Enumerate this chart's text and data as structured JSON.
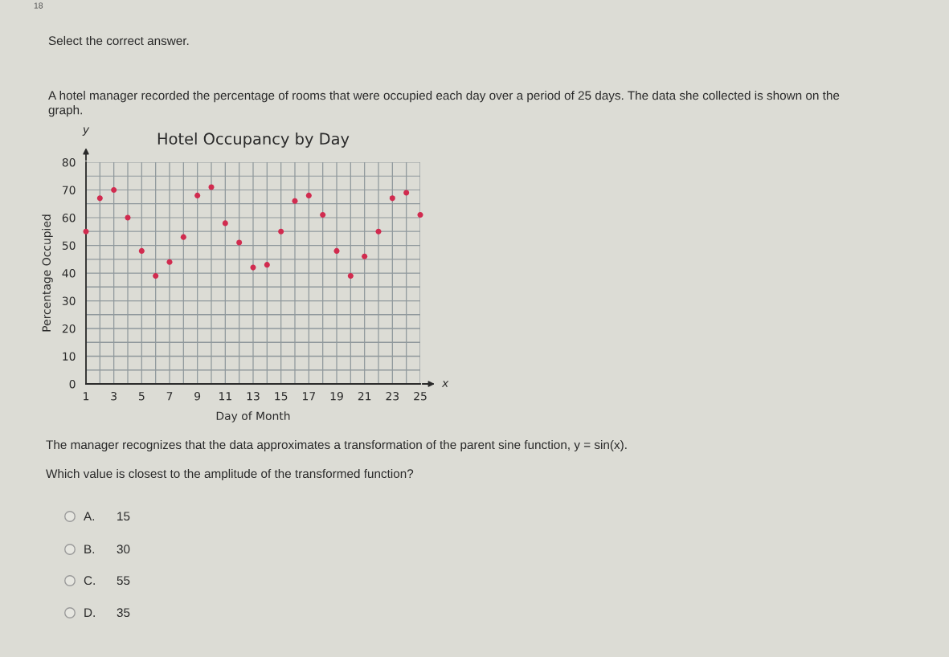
{
  "chart_data": {
    "type": "scatter",
    "title": "Hotel Occupancy by Day",
    "xlabel": "Day of Month",
    "ylabel": "Percentage Occupied",
    "x": [
      1,
      2,
      3,
      4,
      5,
      6,
      7,
      8,
      9,
      10,
      11,
      12,
      13,
      14,
      15,
      16,
      17,
      18,
      19,
      20,
      21,
      22,
      23,
      24,
      25
    ],
    "series": [
      {
        "color": "#d12b4f",
        "values": [
          55,
          67,
          70,
          60,
          48,
          39,
          44,
          53,
          68,
          71,
          58,
          51,
          42,
          43,
          55,
          66,
          68,
          61,
          48,
          39,
          46,
          55,
          67,
          69,
          61
        ]
      }
    ],
    "xlim": [
      1,
      25
    ],
    "ylim": [
      0,
      80
    ],
    "xticks": [
      1,
      {
        "value": 2,
        "label": null
      },
      3,
      {
        "value": 4,
        "label": null
      },
      5,
      {
        "value": 6,
        "label": null
      },
      7,
      {
        "value": 8,
        "label": null
      },
      9,
      {
        "value": 10,
        "label": null
      },
      11,
      {
        "value": 12,
        "label": null
      },
      13,
      {
        "value": 14,
        "label": null
      },
      15,
      {
        "value": 16,
        "label": null
      },
      17,
      {
        "value": 18,
        "label": null
      },
      19,
      {
        "value": 20,
        "label": null
      },
      21,
      {
        "value": 22,
        "label": null
      },
      23,
      {
        "value": 24,
        "label": null
      },
      25
    ],
    "yticks": [
      0,
      {
        "value": 5,
        "label": null
      },
      10,
      {
        "value": 15,
        "label": null
      },
      20,
      {
        "value": 25,
        "label": null
      },
      30,
      {
        "value": 35,
        "label": null
      },
      40,
      {
        "value": 45,
        "label": null
      },
      50,
      {
        "value": 55,
        "label": null
      },
      60,
      {
        "value": 65,
        "label": null
      },
      70,
      {
        "value": 75,
        "label": null
      },
      80
    ],
    "grid": true,
    "marker": "circle",
    "annotations": [
      "18",
      "Select the correct answer.",
      "A hotel manager recorded the percentage of rooms that were occupied each day over a period of 25 days. The data she collected is shown on the\ngraph.",
      "The manager recognizes that the data approximates a transformation of the parent sine function, y = sin(x).",
      "Which value is closest to the amplitude of the transformed function?",
      "A.",
      "15",
      "B.",
      "30",
      "C.",
      "55",
      "D.",
      "35",
      "y",
      "x"
    ]
  }
}
